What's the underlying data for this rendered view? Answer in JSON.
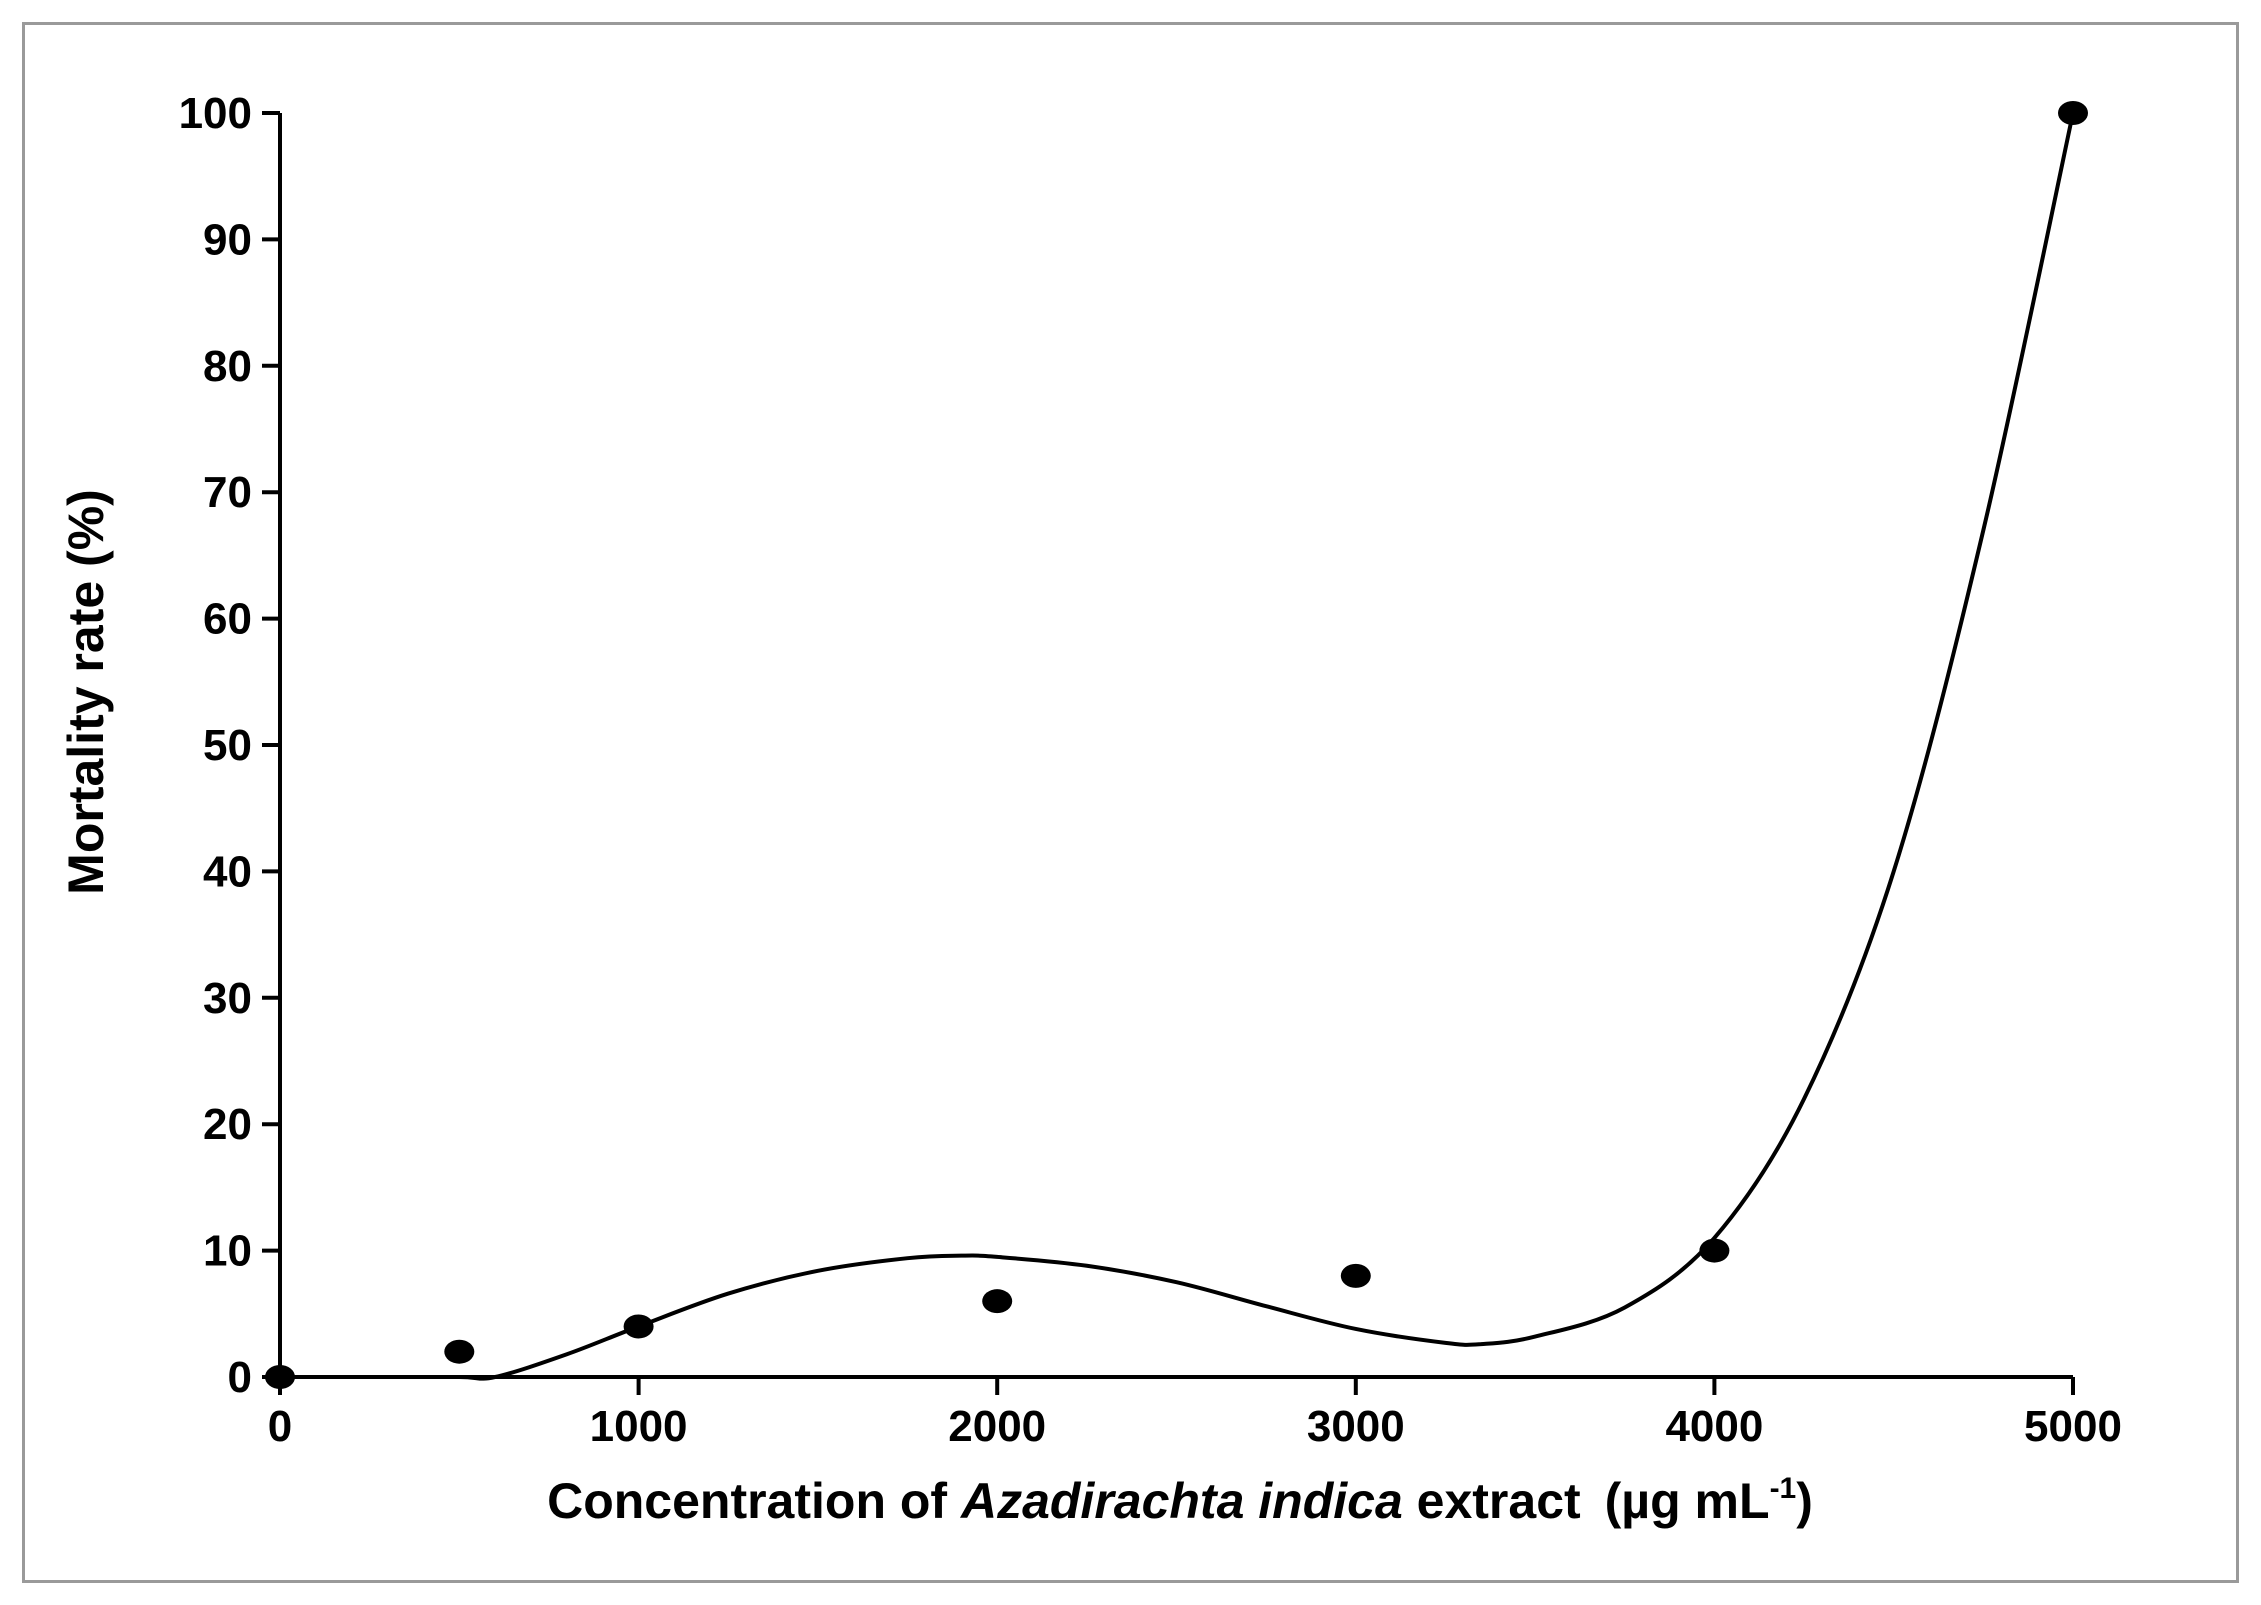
{
  "chart_data": {
    "type": "scatter",
    "title": "",
    "xlabel": {
      "prefix": "Concentration of ",
      "italic": "Azadirachta indica",
      "suffix": " extract",
      "unit_main": "(µg mL",
      "unit_sup": "-1",
      "unit_close": ")"
    },
    "ylabel": "Mortality rate (%)",
    "xlim": [
      0,
      5000
    ],
    "ylim": [
      0,
      100
    ],
    "x_ticks": [
      "0",
      "1000",
      "2000",
      "3000",
      "4000",
      "5000"
    ],
    "y_ticks": [
      "0",
      "10",
      "20",
      "30",
      "40",
      "50",
      "60",
      "70",
      "80",
      "90",
      "100"
    ],
    "grid": false,
    "legend": "none",
    "series": [
      {
        "values_x": [
          0,
          500,
          1000,
          2000,
          3000,
          4000,
          5000
        ],
        "values_y": [
          0,
          2,
          4,
          6,
          8,
          10,
          100
        ]
      }
    ],
    "fit_curve": {
      "type": "polynomial fit",
      "x": [
        0,
        250,
        500,
        600,
        800,
        1000,
        1250,
        1500,
        1750,
        1900,
        2000,
        2250,
        2500,
        2750,
        3000,
        3250,
        3350,
        3500,
        3750,
        4000,
        4250,
        4500,
        4750,
        5000
      ],
      "y": [
        0,
        0,
        0,
        0,
        1.8,
        4,
        6.6,
        8.4,
        9.4,
        9.6,
        9.5,
        8.8,
        7.5,
        5.6,
        3.8,
        2.7,
        2.6,
        3.2,
        5.5,
        11,
        22,
        40,
        67,
        100
      ]
    },
    "colors": {
      "marker": "#000000",
      "line": "#000000",
      "axis": "#000000",
      "frame": "#9a9a9a"
    }
  }
}
